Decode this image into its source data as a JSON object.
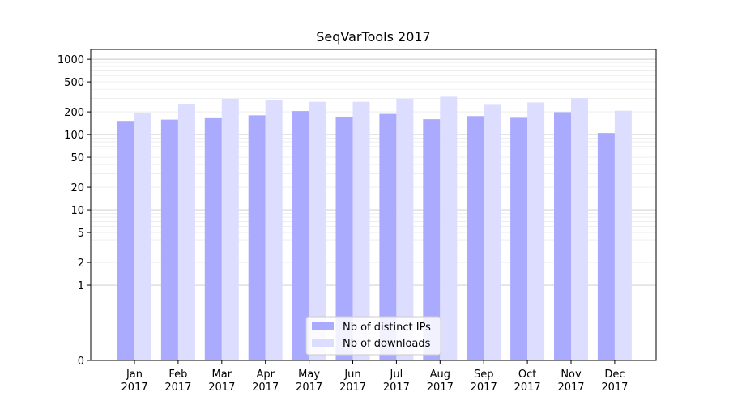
{
  "chart_data": {
    "type": "bar",
    "title": "SeqVarTools 2017",
    "xlabel": "",
    "ylabel": "",
    "yscale": "symlog",
    "ylim": [
      0,
      1350
    ],
    "grid": true,
    "legend_position": "bottom-center",
    "categories": [
      "Jan\n2017",
      "Feb\n2017",
      "Mar\n2017",
      "Apr\n2017",
      "May\n2017",
      "Jun\n2017",
      "Jul\n2017",
      "Aug\n2017",
      "Sep\n2017",
      "Oct\n2017",
      "Nov\n2017",
      "Dec\n2017"
    ],
    "category_lines": [
      [
        "Jan",
        "2017"
      ],
      [
        "Feb",
        "2017"
      ],
      [
        "Mar",
        "2017"
      ],
      [
        "Apr",
        "2017"
      ],
      [
        "May",
        "2017"
      ],
      [
        "Jun",
        "2017"
      ],
      [
        "Jul",
        "2017"
      ],
      [
        "Aug",
        "2017"
      ],
      [
        "Sep",
        "2017"
      ],
      [
        "Oct",
        "2017"
      ],
      [
        "Nov",
        "2017"
      ],
      [
        "Dec",
        "2017"
      ]
    ],
    "y_ticks": [
      0,
      1,
      2,
      5,
      10,
      20,
      50,
      100,
      200,
      500,
      1000
    ],
    "y_tick_labels": [
      "0",
      "1",
      "2",
      "5",
      "10",
      "20",
      "50",
      "100",
      "200",
      "500",
      "1000"
    ],
    "series": [
      {
        "name": "Nb of distinct IPs",
        "color": "#aaaaff",
        "values": [
          152,
          158,
          165,
          180,
          205,
          173,
          188,
          160,
          176,
          167,
          198,
          105
        ]
      },
      {
        "name": "Nb of downloads",
        "color": "#ddddff",
        "values": [
          196,
          253,
          298,
          290,
          272,
          272,
          300,
          318,
          248,
          267,
          305,
          207
        ]
      }
    ]
  }
}
